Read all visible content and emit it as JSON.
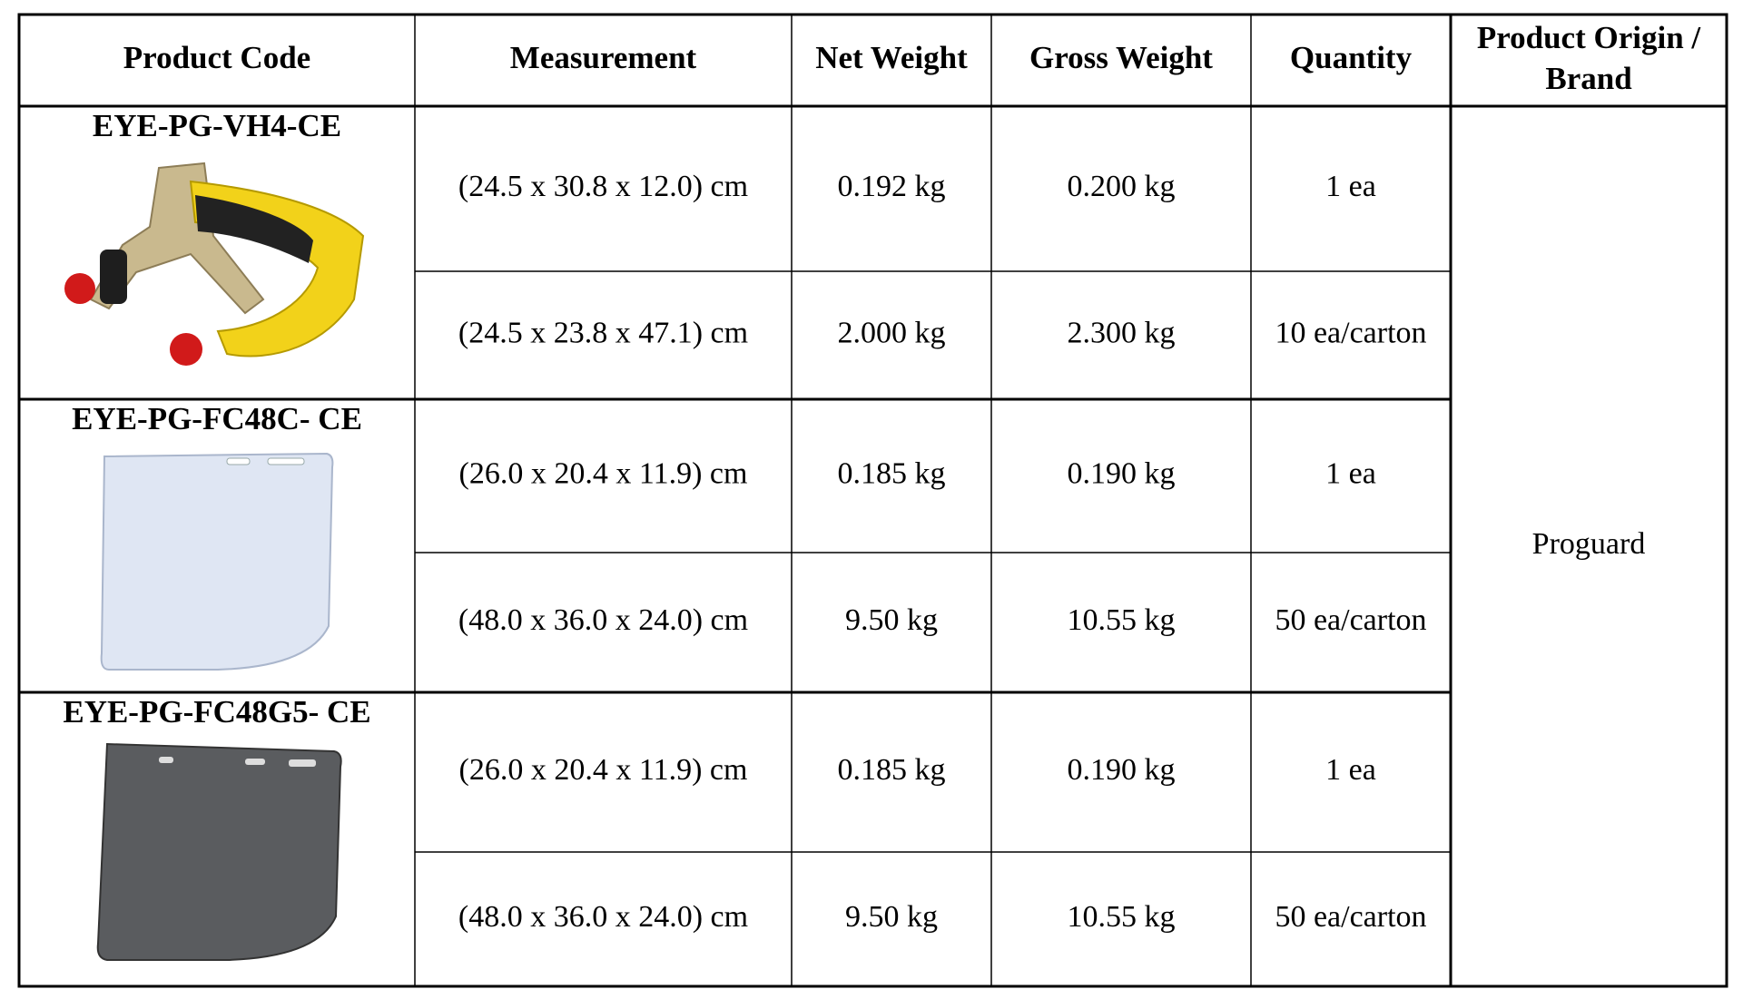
{
  "table": {
    "header": [
      "Product Code",
      "Measurement",
      "Net Weight",
      "Gross Weight",
      "Quantity",
      "Product Origin / Brand"
    ],
    "products": [
      {
        "code": "EYE-PG-VH4-CE",
        "rows": [
          [
            "(24.5 x 30.8 x 12.0) cm",
            "0.192 kg",
            "0.200 kg",
            "1 ea"
          ],
          [
            "(24.5 x 23.8 x 47.1) cm",
            "2.000 kg",
            "2.300 kg",
            "10 ea/carton"
          ]
        ]
      },
      {
        "code": "EYE-PG-FC48C- CE",
        "rows": [
          [
            "(26.0 x 20.4 x 11.9) cm",
            "0.185 kg",
            "0.190 kg",
            "1 ea"
          ],
          [
            "(48.0 x 36.0 x 24.0) cm",
            "9.50 kg",
            "10.55 kg",
            "50 ea/carton"
          ]
        ]
      },
      {
        "code": "EYE-PG-FC48G5- CE",
        "rows": [
          [
            "(26.0 x 20.4 x 11.9) cm",
            "0.185 kg",
            "0.190 kg",
            "1 ea"
          ],
          [
            "(48.0 x 36.0 x 24.0) cm",
            "9.50 kg",
            "10.55 kg",
            "50 ea/carton"
          ]
        ]
      }
    ],
    "brand": "Proguard"
  }
}
